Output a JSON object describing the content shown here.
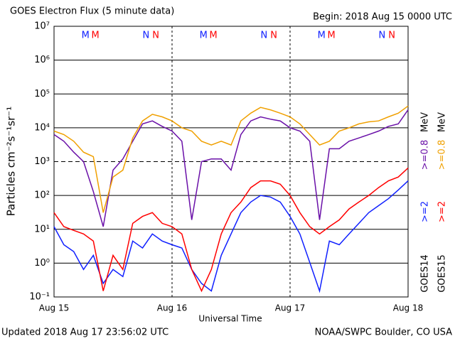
{
  "chart_data": {
    "type": "line",
    "title": "GOES Electron Flux (5 minute data)",
    "subtitle": "Begin: 2018 Aug 15 0000 UTC",
    "ylabel": "Particles cm⁻²s⁻¹sr⁻¹",
    "xlabel": "Universal Time",
    "footer_left": "Updated 2018 Aug 17 23:56:02 UTC",
    "footer_right": "NOAA/SWPC Boulder, CO USA",
    "yscale": "log",
    "ylim": [
      0.1,
      10000000
    ],
    "yticks": [
      {
        "value": 10000000,
        "label": "10⁷"
      },
      {
        "value": 1000000,
        "label": "10⁶"
      },
      {
        "value": 100000,
        "label": "10⁵"
      },
      {
        "value": 10000,
        "label": "10⁴"
      },
      {
        "value": 1000,
        "label": "10³"
      },
      {
        "value": 100,
        "label": "10²"
      },
      {
        "value": 10,
        "label": "10¹"
      },
      {
        "value": 1,
        "label": "10⁰"
      },
      {
        "value": 0.1,
        "label": "10⁻¹"
      }
    ],
    "threshold": 1000,
    "xlim": [
      0,
      72
    ],
    "xticks": [
      {
        "value": 0,
        "label": "Aug 15"
      },
      {
        "value": 24,
        "label": "Aug 16"
      },
      {
        "value": 48,
        "label": "Aug 17"
      },
      {
        "value": 72,
        "label": "Aug 18"
      }
    ],
    "grid": true,
    "unit": "MeV",
    "x": [
      0,
      2,
      4,
      6,
      8,
      10,
      12,
      14,
      16,
      18,
      20,
      22,
      24,
      26,
      28,
      30,
      32,
      34,
      36,
      38,
      40,
      42,
      44,
      46,
      48,
      50,
      52,
      54,
      56,
      58,
      60,
      62,
      64,
      66,
      68,
      70,
      72
    ],
    "groups": [
      {
        "name": "GOES14",
        "color": "#1020ff",
        "markers": [
          {
            "text": "M",
            "x": [
              6.4,
              30.4,
              54.4
            ]
          },
          {
            "text": "N",
            "x": [
              18.7,
              42.7,
              66.7
            ]
          }
        ],
        "series": [
          {
            "name": ">=0.8",
            "color": "#6a10a8",
            "values": [
              6300,
              4000,
              1900,
              1000,
              130,
              12,
              560,
              1200,
              4000,
              13000,
              16000,
              11000,
              8000,
              4000,
              19,
              1000,
              1200,
              1200,
              560,
              6300,
              16000,
              21000,
              18000,
              16000,
              10000,
              8000,
              4000,
              19,
              2400,
              2400,
              4000,
              5000,
              6300,
              8000,
              11000,
              13000,
              34000
            ]
          },
          {
            "name": ">=2",
            "color": "#1020ff",
            "values": [
              12,
              3.5,
              2.2,
              0.65,
              1.7,
              0.25,
              0.65,
              0.4,
              4.5,
              2.8,
              7.3,
              4.5,
              3.5,
              2.8,
              0.65,
              0.25,
              0.15,
              1.7,
              7.3,
              31,
              64,
              100,
              90,
              64,
              24,
              7.3,
              1.05,
              0.15,
              4.5,
              3.5,
              7.3,
              15,
              31,
              50,
              80,
              145,
              270
            ]
          }
        ]
      },
      {
        "name": "GOES15",
        "color": "#ff0000",
        "markers": [
          {
            "text": "M",
            "x": [
              8.4,
              32.4,
              56.4
            ]
          },
          {
            "text": "N",
            "x": [
              20.7,
              44.7,
              68.7
            ]
          }
        ],
        "series": [
          {
            "name": ">=0.8",
            "color": "#f0a000",
            "values": [
              8000,
              6300,
              4000,
              1900,
              1400,
              31,
              350,
              560,
              5000,
              16000,
              25000,
              21000,
              16000,
              10000,
              8000,
              4000,
              3100,
              4000,
              3100,
              16000,
              27000,
              40000,
              34000,
              27000,
              21000,
              13000,
              6300,
              3100,
              4000,
              8000,
              10000,
              13000,
              15000,
              16000,
              21000,
              27000,
              44000
            ]
          },
          {
            "name": ">=2",
            "color": "#ff0000",
            "values": [
              31,
              12,
              9.3,
              7.3,
              4.5,
              0.15,
              1.7,
              0.65,
              15,
              24,
              31,
              15,
              12,
              7.3,
              0.65,
              0.15,
              0.65,
              7.3,
              31,
              64,
              170,
              270,
              270,
              215,
              100,
              31,
              12,
              7.3,
              12,
              19,
              40,
              64,
              100,
              170,
              270,
              350,
              650
            ]
          }
        ]
      }
    ]
  }
}
